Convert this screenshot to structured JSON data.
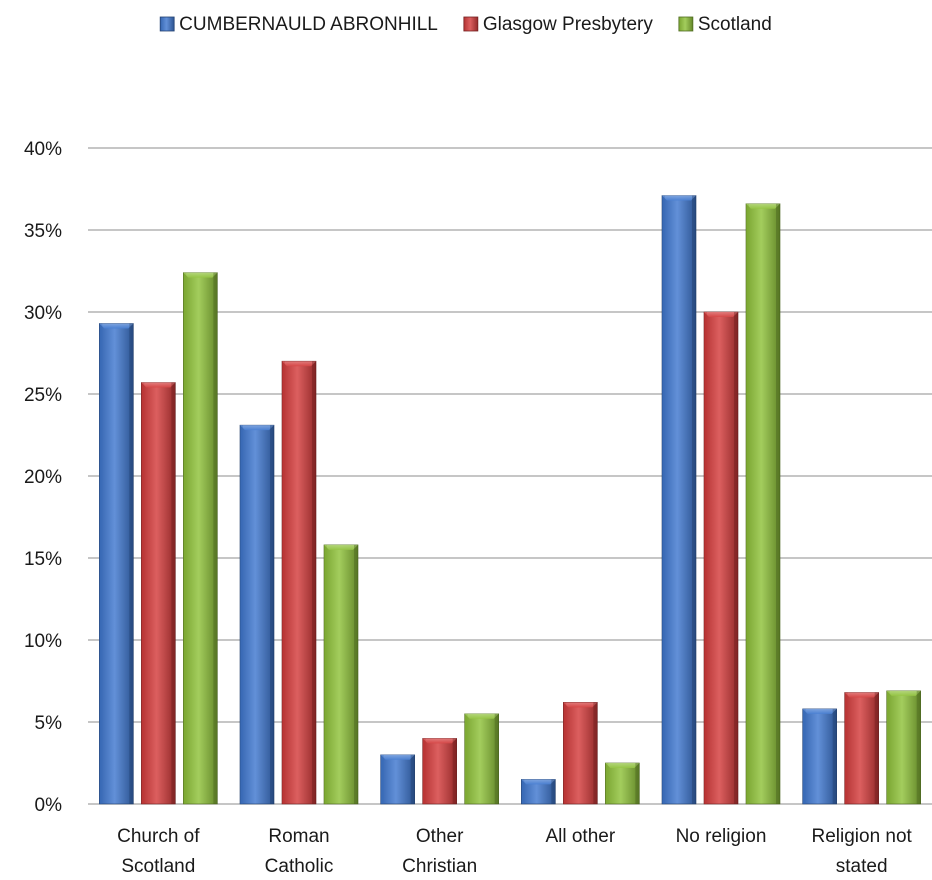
{
  "chart_data": {
    "type": "bar",
    "categories": [
      [
        "Church of",
        "Scotland"
      ],
      [
        "Roman",
        "Catholic"
      ],
      [
        "Other",
        "Christian"
      ],
      [
        "All other"
      ],
      [
        "No religion"
      ],
      [
        "Religion not",
        "stated"
      ]
    ],
    "series": [
      {
        "name": "CUMBERNAULD ABRONHILL",
        "color": "#3f78d0",
        "values": [
          29.3,
          23.1,
          3.0,
          1.5,
          37.1,
          5.8
        ]
      },
      {
        "name": "Glasgow Presbytery",
        "color": "#d43c3c",
        "values": [
          25.7,
          27.0,
          4.0,
          6.2,
          30.0,
          6.8
        ]
      },
      {
        "name": "Scotland",
        "color": "#8fc23a",
        "values": [
          32.4,
          15.8,
          5.5,
          2.5,
          36.6,
          6.9
        ]
      }
    ],
    "ylim": [
      0,
      40
    ],
    "yticks": [
      "0%",
      "5%",
      "10%",
      "15%",
      "20%",
      "25%",
      "30%",
      "35%",
      "40%"
    ],
    "yunit": "%",
    "grid": true,
    "legend_position": "top"
  }
}
